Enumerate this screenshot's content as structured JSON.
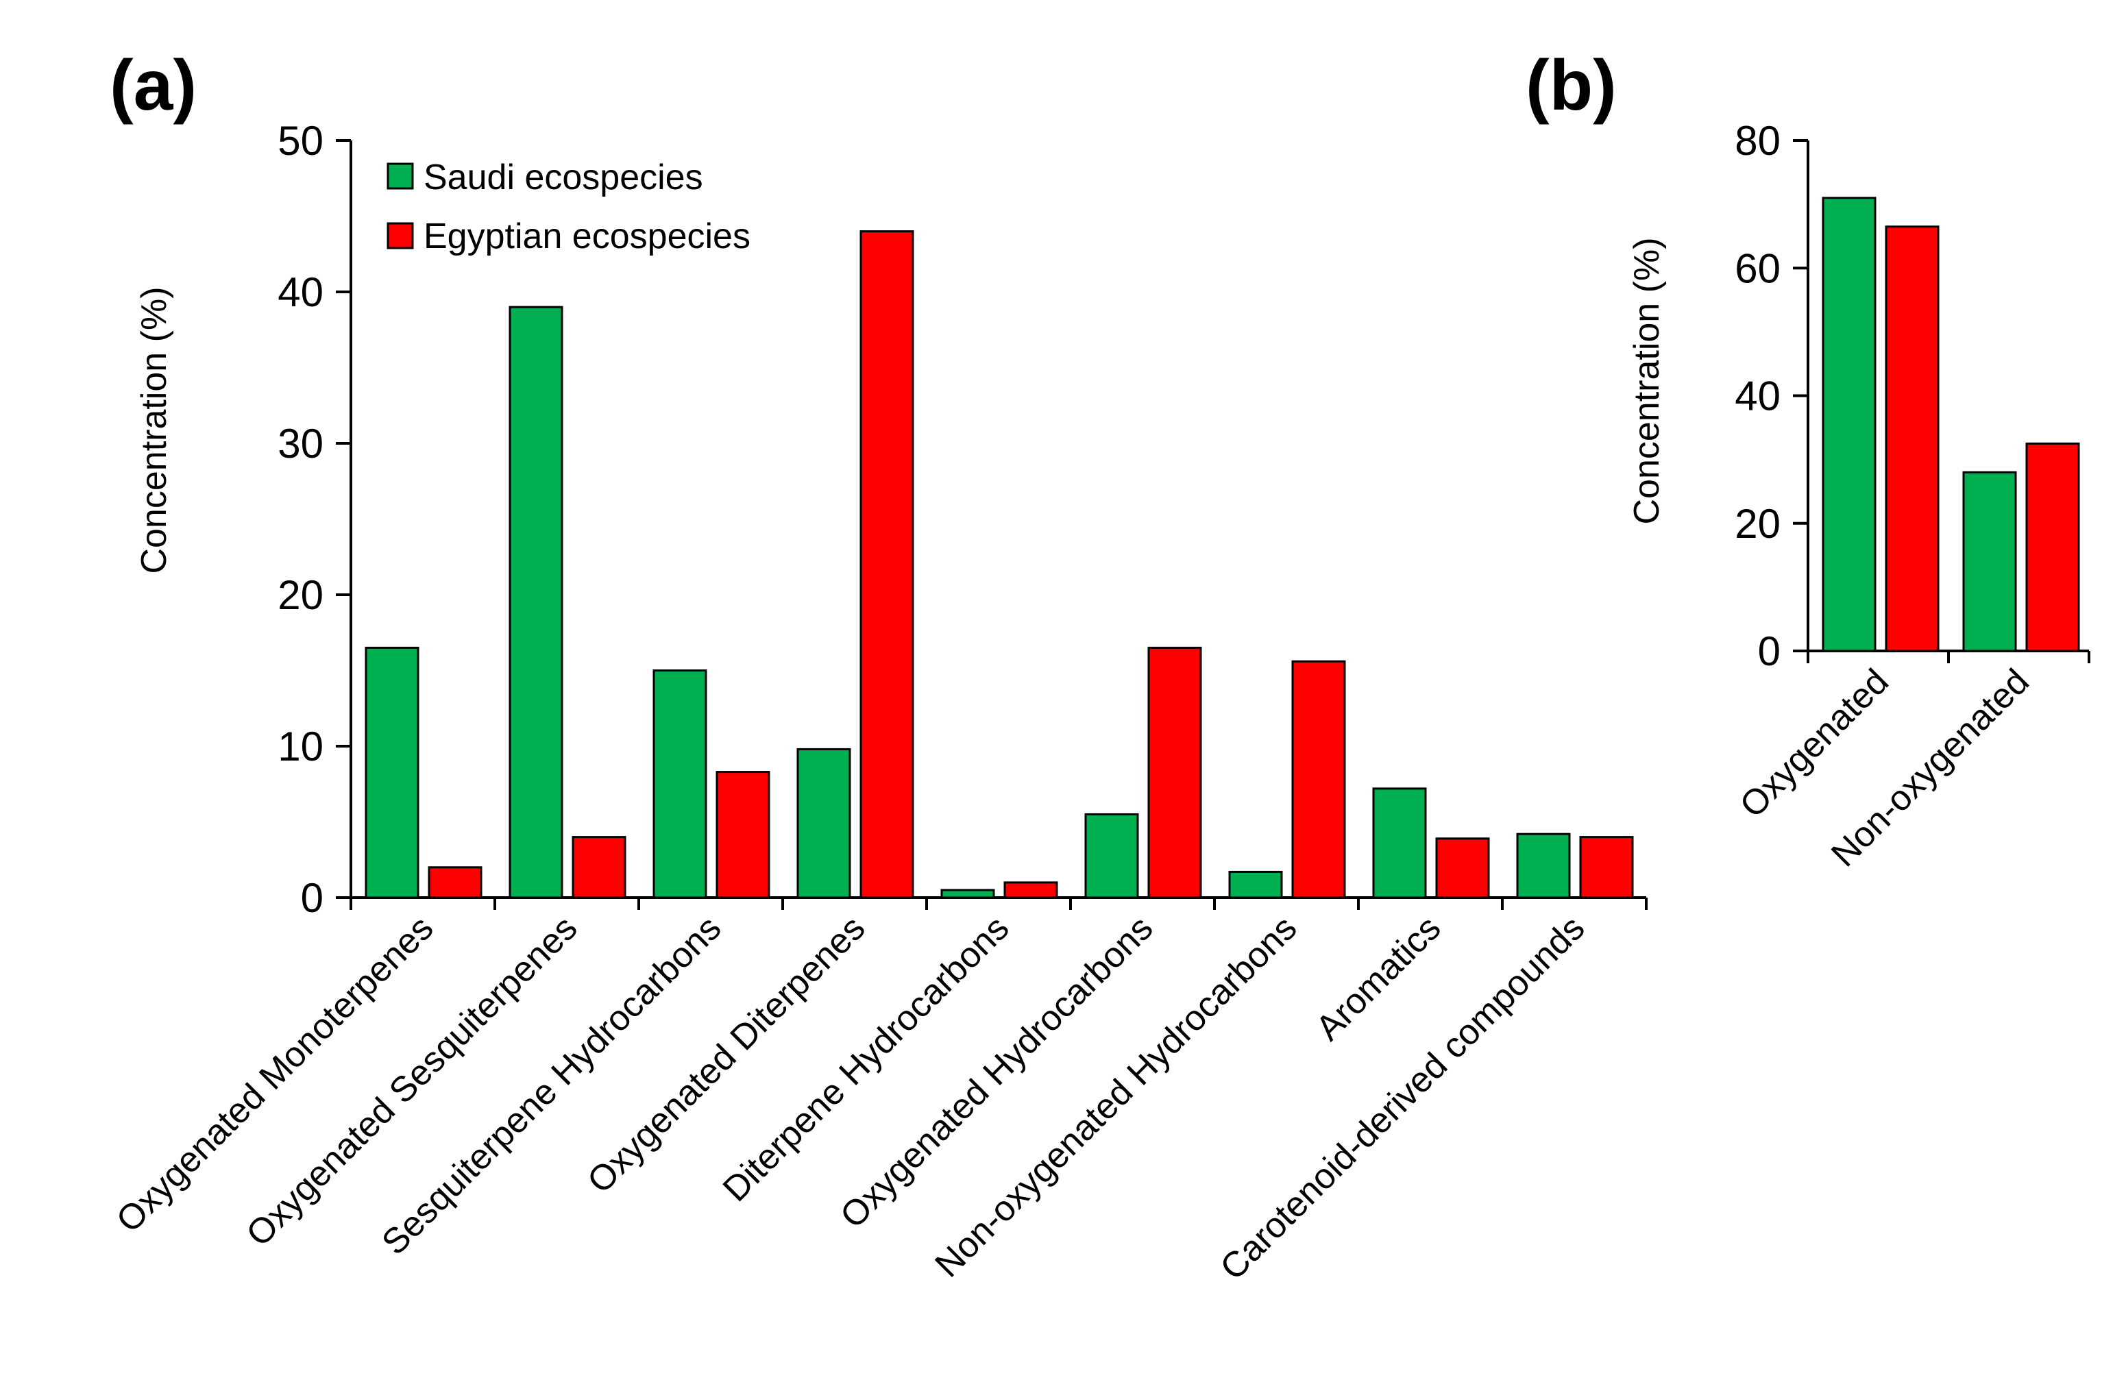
{
  "colors": {
    "saudi": "#00B050",
    "egyptian": "#FF0000",
    "axis": "#000000"
  },
  "chart_data": [
    {
      "panel": "(a)",
      "type": "bar",
      "ylabel": "Concentration (%)",
      "ylim": [
        0,
        50
      ],
      "yticks": [
        0,
        10,
        20,
        30,
        40,
        50
      ],
      "legend_position": "top-left",
      "categories": [
        "Oxygenated Monoterpenes",
        "Oxygenated Sesquiterpenes",
        "Sesquiterpene Hydrocarbons",
        "Oxygenated Diterpenes",
        "Diterpene Hydrocarbons",
        "Oxygenated Hydrocarbons",
        "Non-oxygenated Hydrocarbons",
        "Aromatics",
        "Carotenoid-derived compounds"
      ],
      "series": [
        {
          "name": "Saudi ecospecies",
          "color": "#00B050",
          "values": [
            16.5,
            39.0,
            15.0,
            9.8,
            0.5,
            5.5,
            1.7,
            7.2,
            4.2
          ]
        },
        {
          "name": "Egyptian ecospecies",
          "color": "#FF0000",
          "values": [
            2.0,
            4.0,
            8.3,
            44.0,
            1.0,
            16.5,
            15.6,
            3.9,
            4.0
          ]
        }
      ]
    },
    {
      "panel": "(b)",
      "type": "bar",
      "ylabel": "Concentration (%)",
      "ylim": [
        0,
        80
      ],
      "yticks": [
        0,
        20,
        40,
        60,
        80
      ],
      "categories": [
        "Oxygenated",
        "Non-oxygenated"
      ],
      "series": [
        {
          "name": "Saudi ecospecies",
          "color": "#00B050",
          "values": [
            71.0,
            28.0
          ]
        },
        {
          "name": "Egyptian ecospecies",
          "color": "#FF0000",
          "values": [
            66.5,
            32.5
          ]
        }
      ]
    }
  ]
}
